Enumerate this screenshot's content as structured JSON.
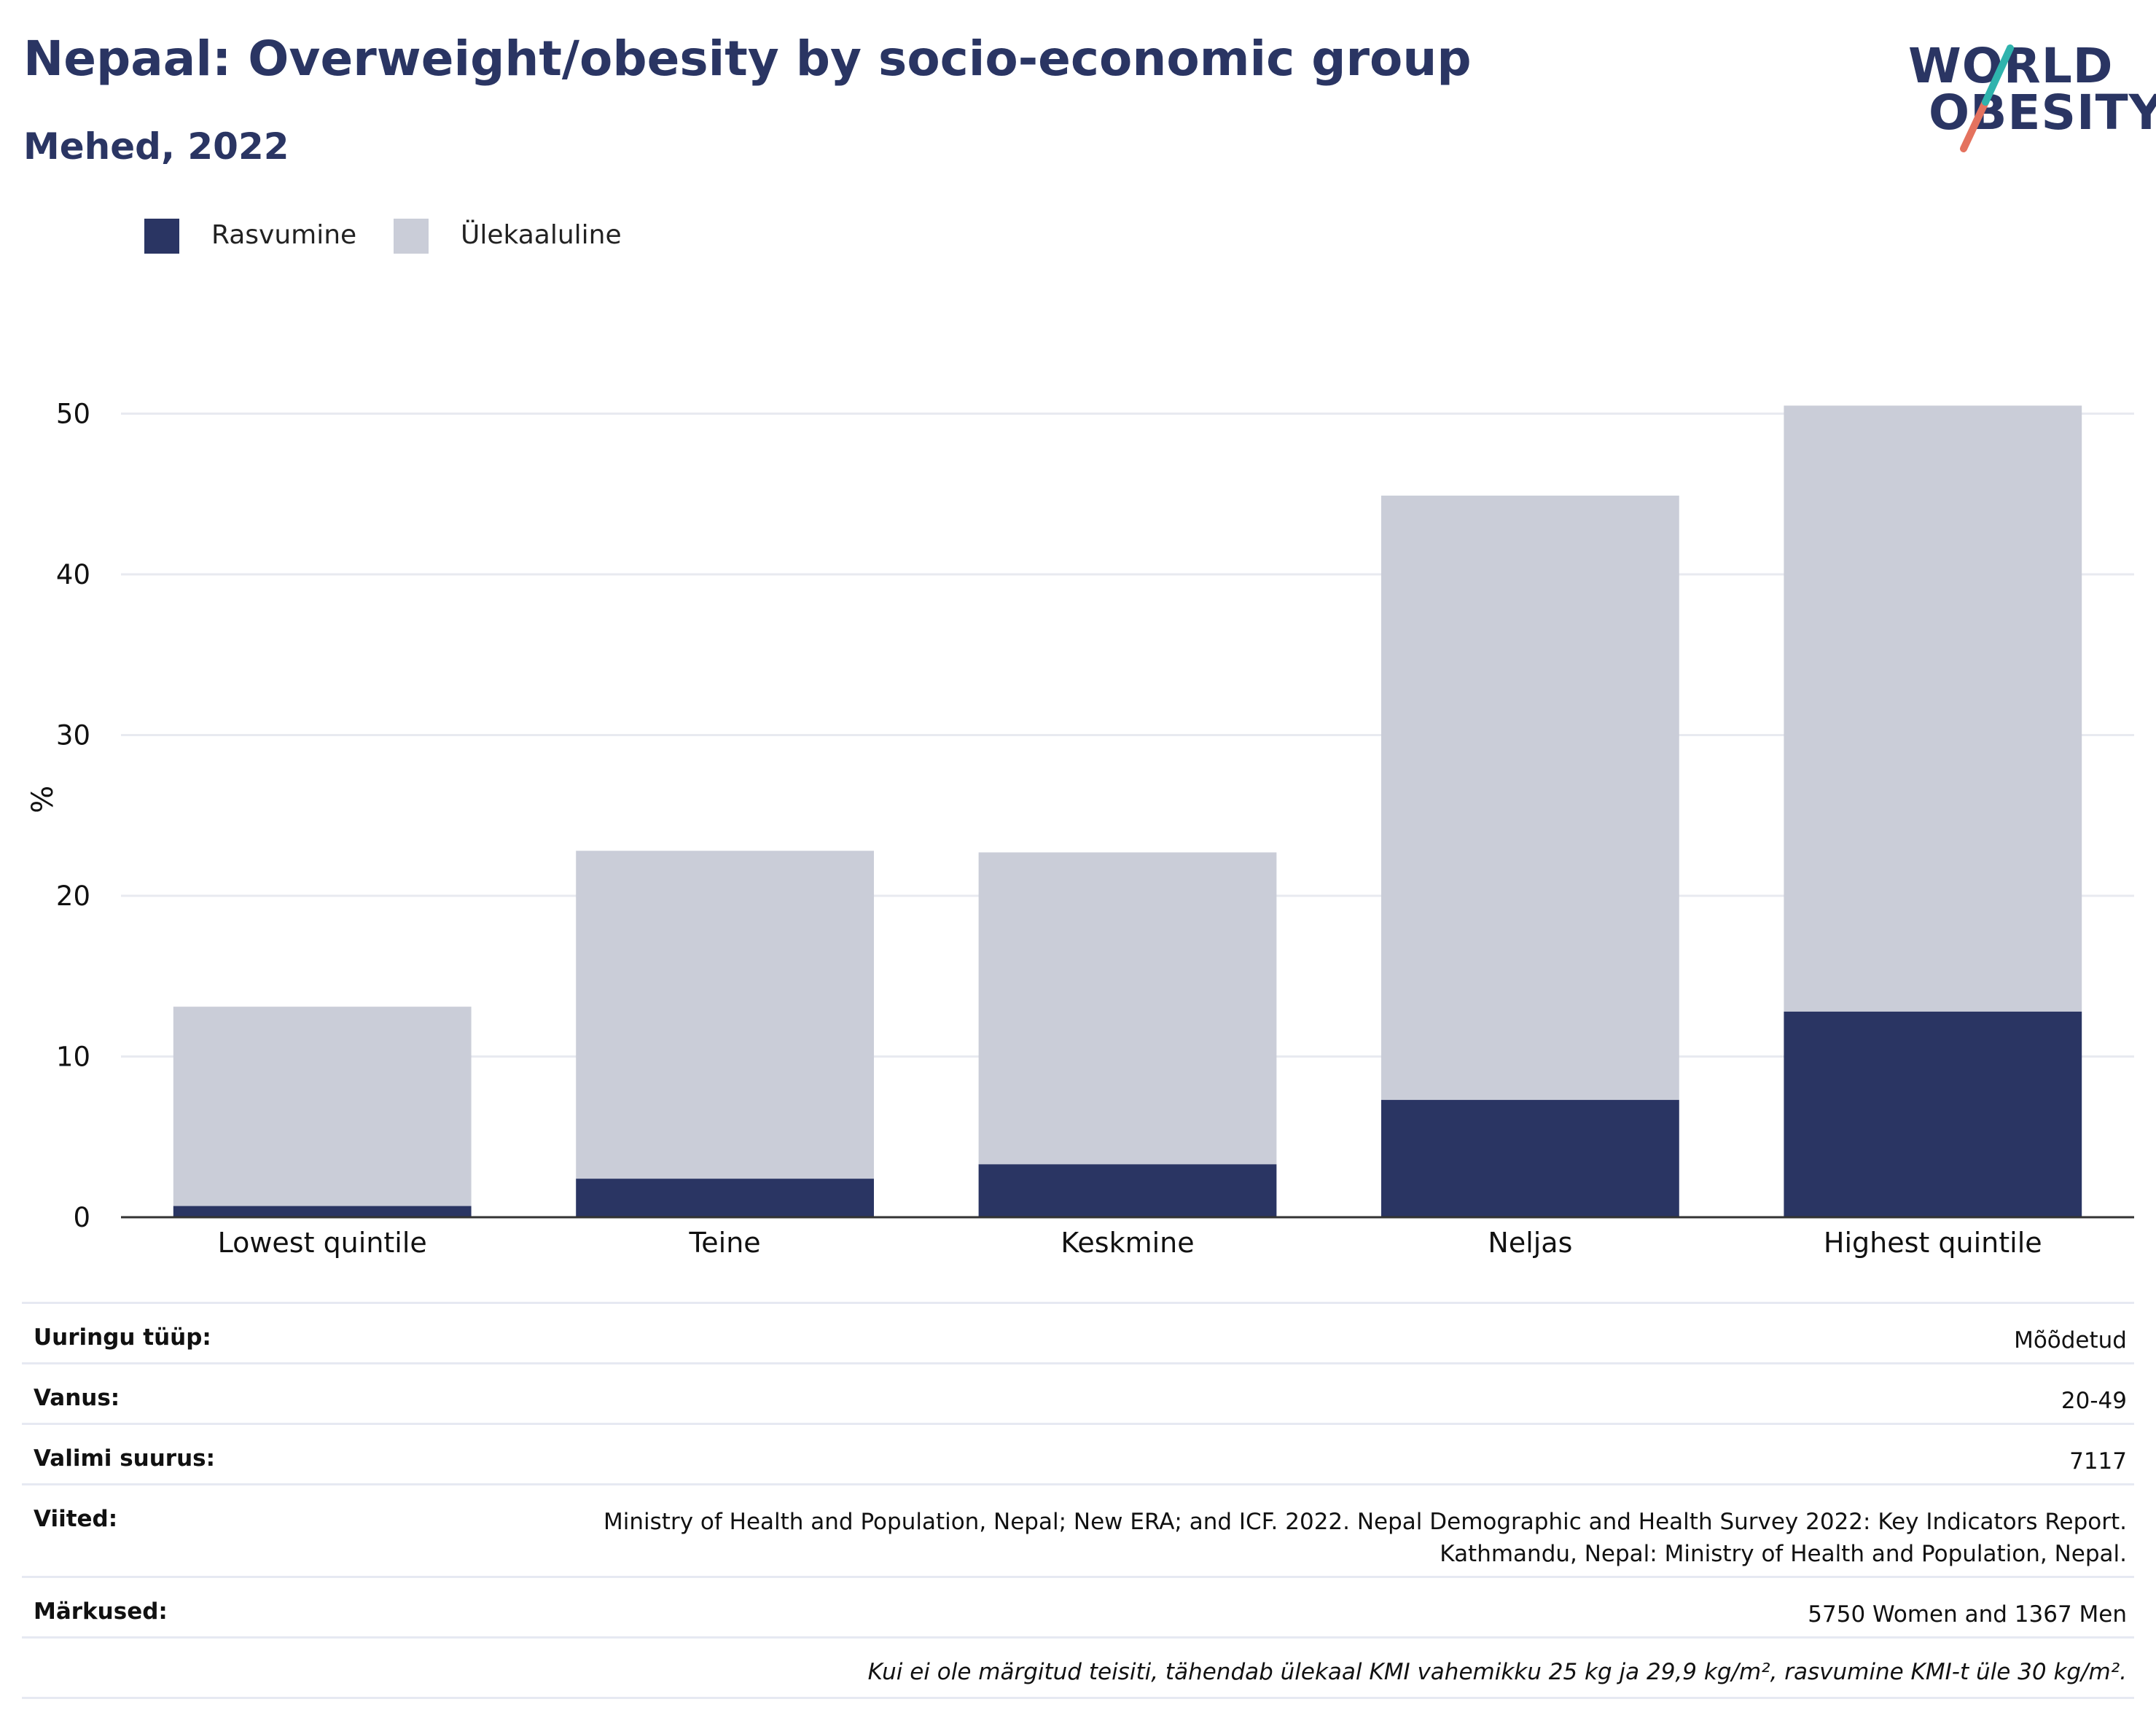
{
  "header": {
    "title": "Nepaal: Overweight/obesity by socio-economic group",
    "subtitle": "Mehed, 2022"
  },
  "logo": {
    "line1": "WORLD",
    "line2": "OBESITY"
  },
  "legend": [
    {
      "label": "Rasvumine",
      "color": "#2a3563"
    },
    {
      "label": "Ülekaaluline",
      "color": "#cacdd8"
    }
  ],
  "chart_data": {
    "type": "bar",
    "stacked": true,
    "categories": [
      "Lowest quintile",
      "Teine",
      "Keskmine",
      "Neljas",
      "Highest quintile"
    ],
    "series": [
      {
        "name": "Rasvumine",
        "color": "#2a3563",
        "values": [
          0.7,
          2.4,
          3.3,
          7.3,
          12.8
        ]
      },
      {
        "name": "Ülekaaluline",
        "color": "#cacdd8",
        "values": [
          12.4,
          20.4,
          19.4,
          37.6,
          37.7
        ]
      }
    ],
    "ylabel": "%",
    "ylim": [
      0,
      52
    ],
    "yticks": [
      0,
      10,
      20,
      30,
      40,
      50
    ],
    "grid": true
  },
  "meta": [
    {
      "label": "Uuringu tüüp:",
      "value": [
        "Mõõdetud"
      ]
    },
    {
      "label": "Vanus:",
      "value": [
        "20-49"
      ]
    },
    {
      "label": "Valimi suurus:",
      "value": [
        "7117"
      ]
    },
    {
      "label": "Viited:",
      "value": [
        "Ministry of Health and Population, Nepal; New ERA; and ICF. 2022. Nepal Demographic and Health Survey 2022: Key Indicators Report.",
        "Kathmandu, Nepal: Ministry of Health and Population, Nepal."
      ]
    },
    {
      "label": "Märkused:",
      "value": [
        "5750 Women and 1367 Men"
      ]
    }
  ],
  "footnote": "Kui ei ole märgitud teisiti, tähendab ülekaal KMI vahemikku 25 kg ja 29,9 kg/m², rasvumine KMI-t üle 30 kg/m²."
}
